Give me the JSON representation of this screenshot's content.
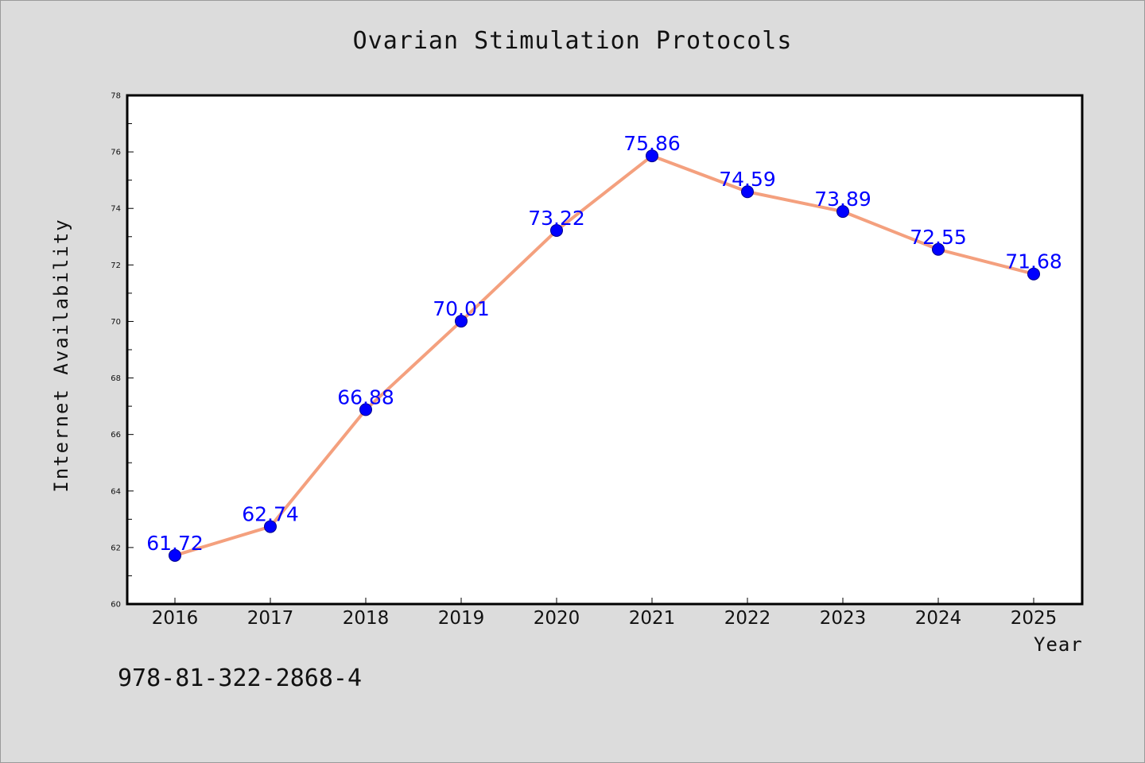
{
  "chart_data": {
    "type": "line",
    "title": "Ovarian Stimulation Protocols",
    "xlabel": "Year",
    "ylabel": "Internet Availability",
    "x": [
      "2016",
      "2017",
      "2018",
      "2019",
      "2020",
      "2021",
      "2022",
      "2023",
      "2024",
      "2025"
    ],
    "series": [
      {
        "values": [
          61.72,
          62.74,
          66.88,
          70.01,
          73.22,
          75.86,
          74.59,
          73.89,
          72.55,
          71.68
        ],
        "data_labels": [
          "61.72",
          "62.74",
          "66.88",
          "70.01",
          "73.22",
          "75.86",
          "74.59",
          "73.89",
          "72.55",
          "71.68"
        ],
        "line_color": "#f4a07e",
        "marker_color": "#0000ff",
        "label_color": "#0000ff"
      }
    ],
    "ylim": [
      60,
      78
    ],
    "yticks": [
      "60",
      "62",
      "64",
      "66",
      "68",
      "70",
      "72",
      "74",
      "76",
      "78"
    ],
    "grid": false,
    "legend": "none"
  },
  "footer": {
    "isbn": "978-81-322-2868-4"
  },
  "colors": {
    "background": "#dcdcdc",
    "plot_background": "#ffffff"
  }
}
